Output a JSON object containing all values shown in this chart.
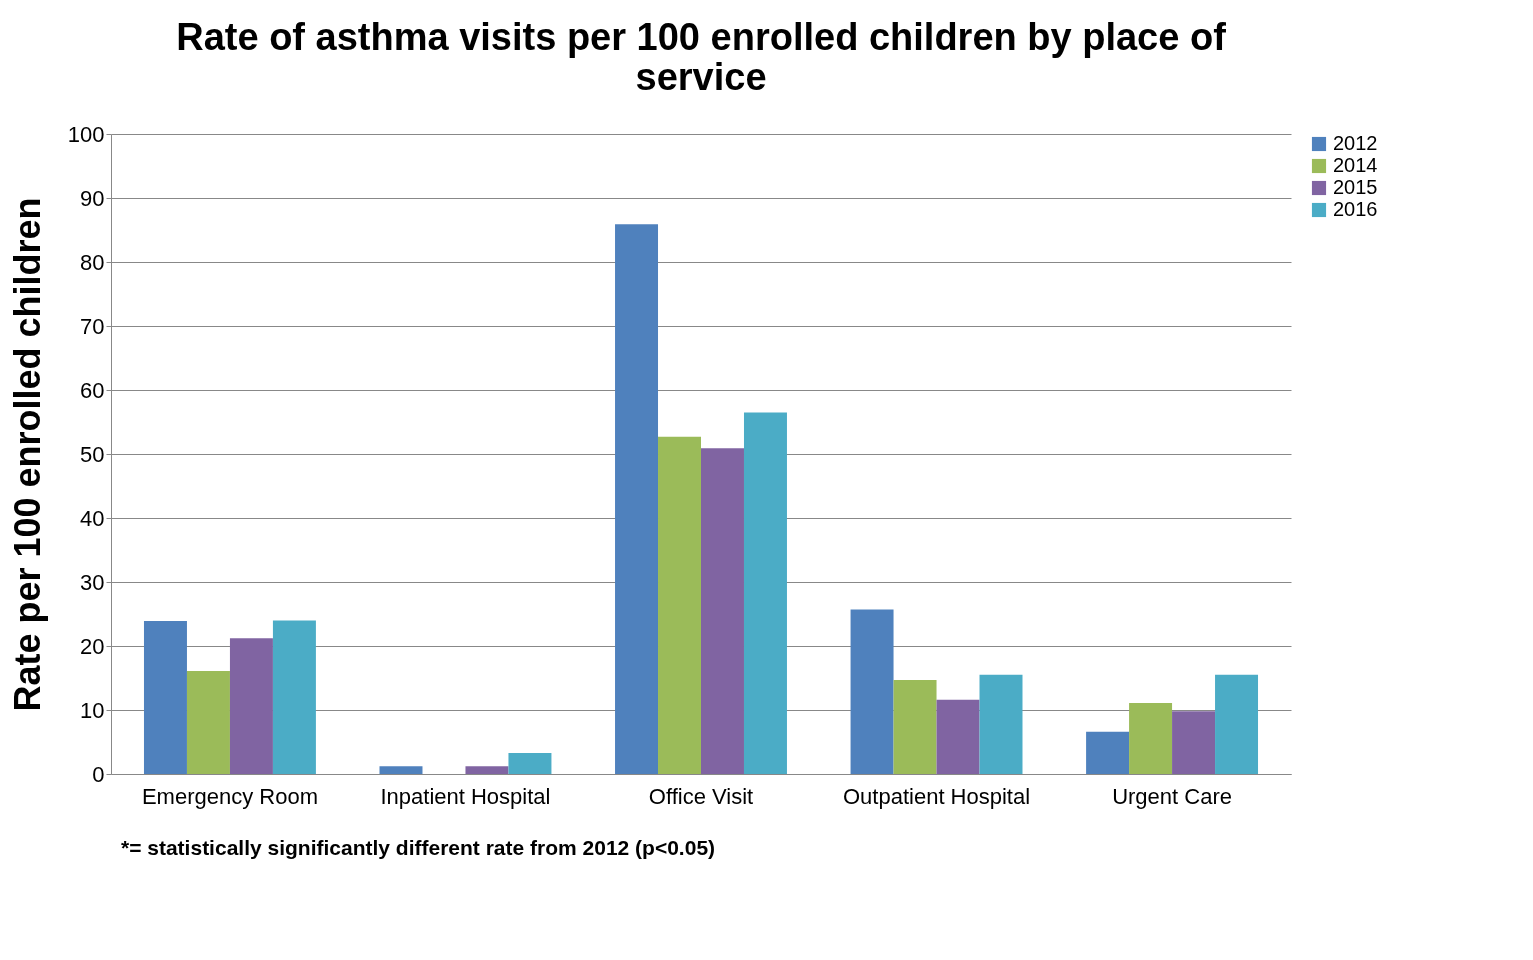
{
  "chart_data": {
    "type": "bar",
    "title": "Rate of asthma visits per 100 enrolled children by place of service",
    "ylabel": "Rate per 100 enrolled children",
    "categories": [
      "Emergency Room",
      "Inpatient Hospital",
      "Office Visit",
      "Outpatient Hospital",
      "Urgent Care"
    ],
    "series": [
      {
        "name": "2012",
        "color": "#4f81bd",
        "values": [
          23.9,
          1.2,
          85.9,
          25.7,
          6.6
        ]
      },
      {
        "name": "2014",
        "color": "#9bbb59",
        "values": [
          16.1,
          null,
          52.7,
          14.7,
          11.1
        ]
      },
      {
        "name": "2015",
        "color": "#8064a2",
        "values": [
          21.2,
          1.2,
          50.9,
          11.6,
          9.8
        ]
      },
      {
        "name": "2016",
        "color": "#4bacc6",
        "values": [
          24.0,
          3.3,
          56.5,
          15.5,
          15.5
        ]
      }
    ],
    "ylim": [
      0,
      100
    ],
    "yticks": [
      0,
      10,
      20,
      30,
      40,
      50,
      60,
      70,
      80,
      90,
      100
    ],
    "grid": "y",
    "legend": "right",
    "annotations": [
      "*= statistically significantly different rate from 2012 (p<0.05)"
    ]
  }
}
